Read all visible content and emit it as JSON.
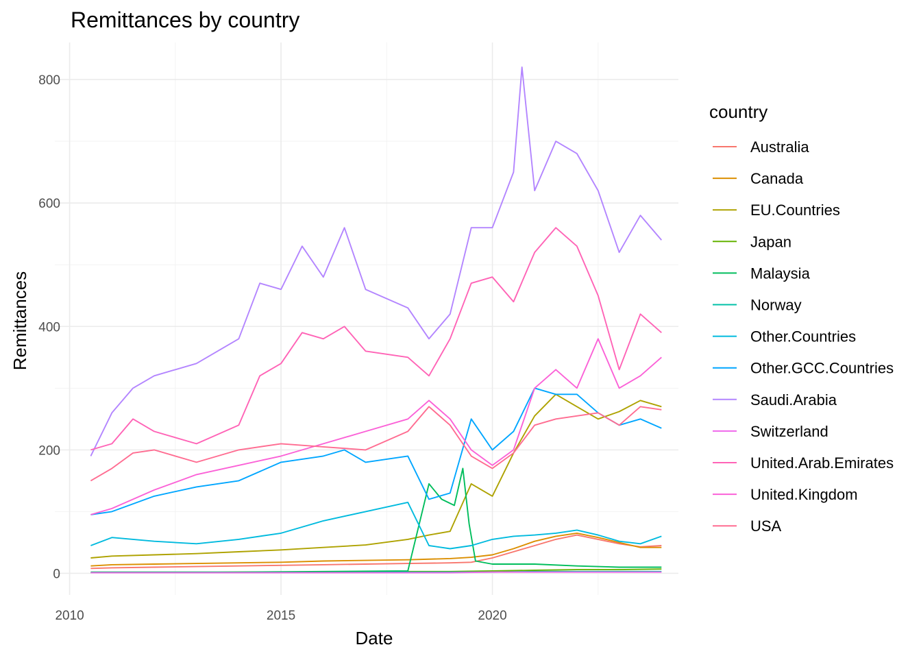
{
  "chart_data": {
    "type": "line",
    "title": "Remittances by country",
    "xlabel": "Date",
    "ylabel": "Remittances",
    "xlim": [
      2009.65,
      2024.4
    ],
    "ylim": [
      -35,
      860
    ],
    "x_ticks": [
      2010,
      2015,
      2020
    ],
    "x_tick_labels": [
      "2010",
      "2015",
      "2020"
    ],
    "y_ticks": [
      0,
      200,
      400,
      600,
      800
    ],
    "y_tick_labels": [
      "0",
      "200",
      "400",
      "600",
      "800"
    ],
    "grid": true,
    "legend": {
      "title": "country",
      "position": "right"
    },
    "series": [
      {
        "name": "Australia",
        "color": "#F8766D",
        "x": [
          2010.5,
          2011,
          2012,
          2013,
          2014,
          2015,
          2016,
          2017,
          2018,
          2019,
          2019.5,
          2020,
          2020.5,
          2021,
          2021.5,
          2022,
          2022.5,
          2023,
          2023.5,
          2024
        ],
        "y": [
          8,
          9,
          10,
          11,
          12,
          13,
          14,
          15,
          16,
          17,
          18,
          25,
          35,
          45,
          55,
          62,
          55,
          48,
          43,
          45
        ]
      },
      {
        "name": "Canada",
        "color": "#DB8E00",
        "x": [
          2010.5,
          2011,
          2012,
          2013,
          2014,
          2015,
          2016,
          2017,
          2018,
          2019,
          2019.5,
          2020,
          2020.5,
          2021,
          2021.5,
          2022,
          2022.5,
          2023,
          2023.5,
          2024
        ],
        "y": [
          12,
          14,
          15,
          16,
          17,
          18,
          20,
          21,
          22,
          24,
          26,
          30,
          40,
          52,
          60,
          65,
          58,
          50,
          42,
          42
        ]
      },
      {
        "name": "EU.Countries",
        "color": "#AEA200",
        "x": [
          2010.5,
          2011,
          2012,
          2013,
          2014,
          2015,
          2016,
          2017,
          2018,
          2018.5,
          2019,
          2019.5,
          2020,
          2020.5,
          2021,
          2021.5,
          2022,
          2022.5,
          2023,
          2023.5,
          2024
        ],
        "y": [
          25,
          28,
          30,
          32,
          35,
          38,
          42,
          46,
          55,
          62,
          68,
          145,
          125,
          195,
          255,
          290,
          270,
          250,
          262,
          280,
          270
        ]
      },
      {
        "name": "Japan",
        "color": "#64B200",
        "x": [
          2010.5,
          2012,
          2014,
          2016,
          2018,
          2019,
          2020,
          2021,
          2022,
          2023,
          2024
        ],
        "y": [
          1,
          1,
          2,
          2,
          3,
          3,
          4,
          5,
          6,
          6,
          7
        ]
      },
      {
        "name": "Malaysia",
        "color": "#00BD5C",
        "x": [
          2010.5,
          2012,
          2014,
          2016,
          2018,
          2018.5,
          2018.8,
          2019.1,
          2019.3,
          2019.45,
          2019.6,
          2020,
          2021,
          2022,
          2023,
          2024
        ],
        "y": [
          2,
          2,
          2,
          3,
          4,
          145,
          120,
          110,
          170,
          80,
          20,
          15,
          15,
          12,
          10,
          10
        ]
      },
      {
        "name": "Norway",
        "color": "#00C1A7",
        "x": [
          2010.5,
          2012,
          2014,
          2016,
          2018,
          2019,
          2020,
          2021,
          2022,
          2023,
          2024
        ],
        "y": [
          1,
          1,
          1,
          1,
          2,
          2,
          2,
          3,
          3,
          3,
          3
        ]
      },
      {
        "name": "Other.Countries",
        "color": "#00BADE",
        "x": [
          2010.5,
          2011,
          2012,
          2013,
          2014,
          2015,
          2016,
          2017,
          2018,
          2018.5,
          2019,
          2019.5,
          2020,
          2020.5,
          2021,
          2021.5,
          2022,
          2022.5,
          2023,
          2023.5,
          2024
        ],
        "y": [
          45,
          58,
          52,
          48,
          55,
          65,
          85,
          100,
          115,
          45,
          40,
          45,
          55,
          60,
          62,
          65,
          70,
          62,
          52,
          48,
          60
        ]
      },
      {
        "name": "Other.GCC.Countries",
        "color": "#00A6FF",
        "x": [
          2010.5,
          2011,
          2012,
          2013,
          2014,
          2015,
          2016,
          2016.5,
          2017,
          2018,
          2018.5,
          2019,
          2019.5,
          2020,
          2020.5,
          2021,
          2021.5,
          2022,
          2022.5,
          2023,
          2023.5,
          2024
        ],
        "y": [
          95,
          100,
          125,
          140,
          150,
          180,
          190,
          200,
          180,
          190,
          120,
          130,
          250,
          200,
          230,
          300,
          290,
          290,
          260,
          240,
          250,
          235
        ]
      },
      {
        "name": "Saudi.Arabia",
        "color": "#B385FF",
        "x": [
          2010.5,
          2011,
          2011.5,
          2012,
          2013,
          2014,
          2014.5,
          2015,
          2015.5,
          2016,
          2016.5,
          2017,
          2018,
          2018.5,
          2019,
          2019.5,
          2020,
          2020.5,
          2020.7,
          2021,
          2021.5,
          2022,
          2022.5,
          2023,
          2023.5,
          2024
        ],
        "y": [
          190,
          260,
          300,
          320,
          340,
          380,
          470,
          460,
          530,
          480,
          560,
          460,
          430,
          380,
          420,
          560,
          560,
          650,
          820,
          620,
          700,
          680,
          620,
          520,
          580,
          540
        ]
      },
      {
        "name": "Switzerland",
        "color": "#EF67EB",
        "x": [
          2010.5,
          2012,
          2014,
          2016,
          2018,
          2019,
          2020,
          2021,
          2022,
          2023,
          2024
        ],
        "y": [
          1,
          1,
          1,
          1,
          1,
          1,
          2,
          2,
          2,
          2,
          2
        ]
      },
      {
        "name": "United.Arab.Emirates",
        "color": "#FF63B6",
        "x": [
          2010.5,
          2011,
          2011.5,
          2012,
          2013,
          2014,
          2014.5,
          2015,
          2015.5,
          2016,
          2016.5,
          2017,
          2018,
          2018.5,
          2019,
          2019.5,
          2020,
          2020.5,
          2021,
          2021.5,
          2022,
          2022.5,
          2023,
          2023.5,
          2024
        ],
        "y": [
          200,
          210,
          250,
          230,
          210,
          240,
          320,
          340,
          390,
          380,
          400,
          360,
          350,
          320,
          380,
          470,
          480,
          440,
          520,
          560,
          530,
          450,
          330,
          420,
          390
        ]
      },
      {
        "name": "United.Kingdom",
        "color": "#FB61D7",
        "x": [
          2010.5,
          2011,
          2012,
          2013,
          2014,
          2015,
          2016,
          2017,
          2018,
          2018.5,
          2019,
          2019.5,
          2020,
          2020.5,
          2021,
          2021.5,
          2022,
          2022.5,
          2023,
          2023.5,
          2024
        ],
        "y": [
          95,
          105,
          135,
          160,
          175,
          190,
          210,
          230,
          250,
          280,
          250,
          200,
          175,
          200,
          300,
          330,
          300,
          380,
          300,
          320,
          350
        ]
      },
      {
        "name": "USA",
        "color": "#FF6C91",
        "x": [
          2010.5,
          2011,
          2011.5,
          2012,
          2013,
          2014,
          2015,
          2016,
          2017,
          2018,
          2018.5,
          2019,
          2019.5,
          2020,
          2020.5,
          2021,
          2021.5,
          2022,
          2022.5,
          2023,
          2023.5,
          2024
        ],
        "y": [
          150,
          170,
          195,
          200,
          180,
          200,
          210,
          205,
          200,
          230,
          270,
          240,
          190,
          170,
          195,
          240,
          250,
          255,
          260,
          240,
          270,
          265
        ]
      }
    ]
  }
}
